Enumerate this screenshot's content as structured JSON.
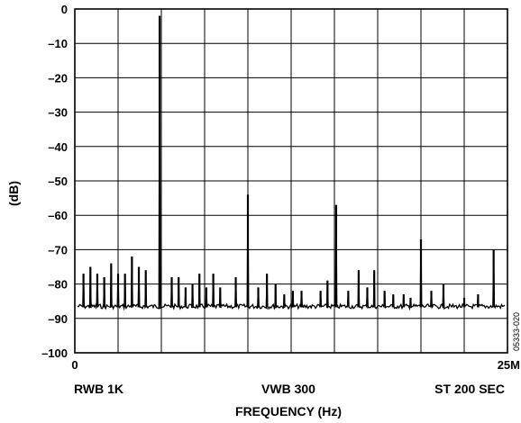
{
  "chart_data": {
    "type": "line",
    "title": "",
    "xlabel": "FREQUENCY (Hz)",
    "ylabel": "(dB)",
    "ylim": [
      -100,
      0
    ],
    "y_ticks": [
      0,
      -10,
      -20,
      -30,
      -40,
      -50,
      -60,
      -70,
      -80,
      -90,
      -100
    ],
    "y_tick_labels": [
      "0",
      "–10",
      "–20",
      "–30",
      "–40",
      "–50",
      "–60",
      "–70",
      "–80",
      "–90",
      "–100"
    ],
    "x_unit": "MHz",
    "xlim": [
      0,
      25
    ],
    "x_tick_labels": [
      {
        "x": 0,
        "label": "0"
      },
      {
        "x": 25,
        "label": "25M"
      }
    ],
    "grid": true,
    "x_grid_divisions": 10,
    "noise_floor_db": -86.5,
    "annotations": {
      "left": "RWB 1K",
      "center": "VWB 300",
      "right": "ST 200 SEC"
    },
    "figure_id": "05333-020",
    "peaks": [
      {
        "x": 0.5,
        "y": -77
      },
      {
        "x": 0.9,
        "y": -75
      },
      {
        "x": 1.3,
        "y": -77
      },
      {
        "x": 1.7,
        "y": -78
      },
      {
        "x": 2.1,
        "y": -74
      },
      {
        "x": 2.5,
        "y": -77
      },
      {
        "x": 2.9,
        "y": -77
      },
      {
        "x": 3.3,
        "y": -72
      },
      {
        "x": 3.7,
        "y": -75
      },
      {
        "x": 4.1,
        "y": -76
      },
      {
        "x": 4.9,
        "y": -2
      },
      {
        "x": 5.6,
        "y": -78
      },
      {
        "x": 6.0,
        "y": -78
      },
      {
        "x": 6.4,
        "y": -81
      },
      {
        "x": 6.8,
        "y": -80
      },
      {
        "x": 7.2,
        "y": -77
      },
      {
        "x": 7.6,
        "y": -81
      },
      {
        "x": 8.0,
        "y": -77
      },
      {
        "x": 8.4,
        "y": -81
      },
      {
        "x": 9.3,
        "y": -78
      },
      {
        "x": 10.0,
        "y": -54
      },
      {
        "x": 10.6,
        "y": -81
      },
      {
        "x": 11.1,
        "y": -77
      },
      {
        "x": 11.6,
        "y": -80
      },
      {
        "x": 12.1,
        "y": -83
      },
      {
        "x": 12.6,
        "y": -82
      },
      {
        "x": 13.1,
        "y": -82
      },
      {
        "x": 14.2,
        "y": -82
      },
      {
        "x": 14.6,
        "y": -79
      },
      {
        "x": 15.1,
        "y": -57
      },
      {
        "x": 15.8,
        "y": -82
      },
      {
        "x": 16.4,
        "y": -76
      },
      {
        "x": 16.9,
        "y": -81
      },
      {
        "x": 17.3,
        "y": -76
      },
      {
        "x": 17.9,
        "y": -82
      },
      {
        "x": 18.4,
        "y": -83
      },
      {
        "x": 19.0,
        "y": -83
      },
      {
        "x": 19.4,
        "y": -84
      },
      {
        "x": 20.0,
        "y": -67
      },
      {
        "x": 20.6,
        "y": -82
      },
      {
        "x": 21.3,
        "y": -80
      },
      {
        "x": 22.5,
        "y": -84
      },
      {
        "x": 23.3,
        "y": -83
      },
      {
        "x": 24.2,
        "y": -70
      }
    ]
  }
}
